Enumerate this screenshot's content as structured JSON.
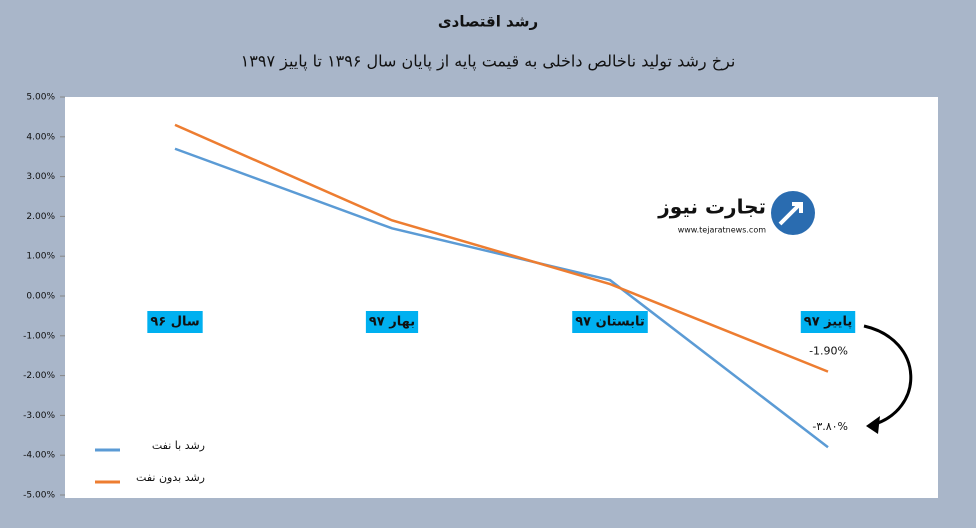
{
  "chart_data": {
    "type": "line",
    "title": "رشد اقتصادی",
    "subtitle": "نرخ رشد تولید ناخالص داخلی به قیمت پایه از پایان سال ۱۳۹۶ تا پاییز ۱۳۹۷",
    "watermark": {
      "brand": "تجارت نیوز",
      "url": "www.tejaratnews.com"
    },
    "categories": [
      "سال ۹۶",
      "بهار ۹۷",
      "تابستان ۹۷",
      "پاییز ۹۷"
    ],
    "series": [
      {
        "name": "رشد با نفت",
        "color": "#5b9bd5",
        "values": [
          3.7,
          1.7,
          0.4,
          -3.8
        ],
        "value_labels": [
          null,
          null,
          null,
          "-۳.۸۰%"
        ]
      },
      {
        "name": "رشد بدون نفت",
        "color": "#ed7d31",
        "values": [
          4.3,
          1.9,
          0.3,
          -1.9
        ],
        "value_labels": [
          null,
          null,
          null,
          "-1.90%"
        ]
      }
    ],
    "ylim": [
      -5,
      5
    ],
    "yticks": [
      {
        "value": 5,
        "label": "5.00%"
      },
      {
        "value": 4,
        "label": "4.00%"
      },
      {
        "value": 3,
        "label": "3.00%"
      },
      {
        "value": 2,
        "label": "2.00%"
      },
      {
        "value": 1,
        "label": "1.00%"
      },
      {
        "value": 0,
        "label": "0.00%"
      },
      {
        "value": -1,
        "label": "-1.00%"
      },
      {
        "value": -2,
        "label": "-2.00%"
      },
      {
        "value": -3,
        "label": "-3.00%"
      },
      {
        "value": -4,
        "label": "-4.00%"
      },
      {
        "value": -5,
        "label": "-5.00%"
      }
    ],
    "legend": "bottom-left",
    "grid": false
  }
}
